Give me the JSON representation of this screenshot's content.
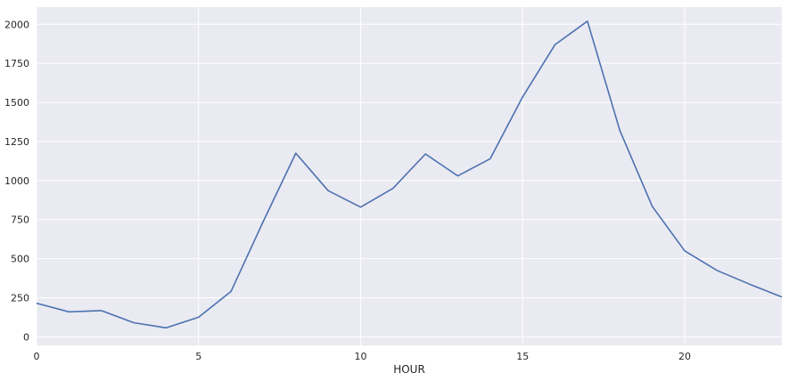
{
  "chart_data": {
    "type": "line",
    "xlabel": "HOUR",
    "ylabel": "",
    "xlim": [
      0,
      23
    ],
    "ylim": [
      -55,
      2110
    ],
    "x_ticks": [
      0,
      5,
      10,
      15,
      20
    ],
    "y_ticks": [
      0,
      250,
      500,
      750,
      1000,
      1250,
      1500,
      1750,
      2000
    ],
    "grid": true,
    "background": "#EAEAF2",
    "grid_color": "#FFFFFF",
    "line_color": "#4C72B0",
    "series": [
      {
        "x": [
          0,
          1,
          2,
          3,
          4,
          5,
          6,
          7,
          8,
          9,
          10,
          11,
          12,
          13,
          14,
          15,
          16,
          17,
          18,
          19,
          20,
          21,
          22,
          23
        ],
        "values": [
          215,
          160,
          168,
          90,
          57,
          125,
          290,
          740,
          1175,
          935,
          830,
          950,
          1170,
          1030,
          1140,
          1535,
          1870,
          2020,
          1320,
          835,
          550,
          425,
          337,
          255
        ]
      }
    ]
  }
}
